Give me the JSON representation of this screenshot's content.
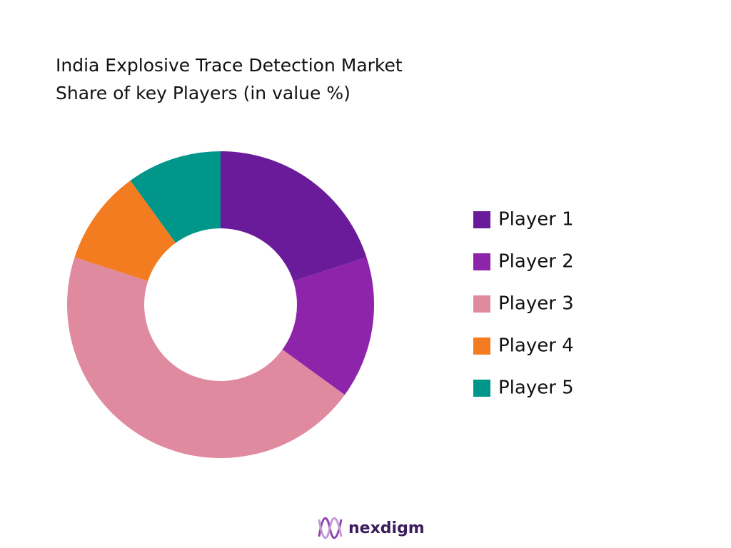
{
  "chart_data": {
    "type": "pie",
    "title": [
      "India Explosive Trace Detection Market",
      "Share of key Players (in value %)"
    ],
    "categories": [
      "Player 1",
      "Player 2",
      "Player 3",
      "Player 4",
      "Player 5"
    ],
    "values": [
      20,
      15,
      45,
      10,
      10
    ],
    "colors": [
      "#6a1b9a",
      "#8e24aa",
      "#e08aa0",
      "#f47c20",
      "#00968a"
    ],
    "donut": true,
    "legend": "right"
  },
  "logo": "nexdigm"
}
